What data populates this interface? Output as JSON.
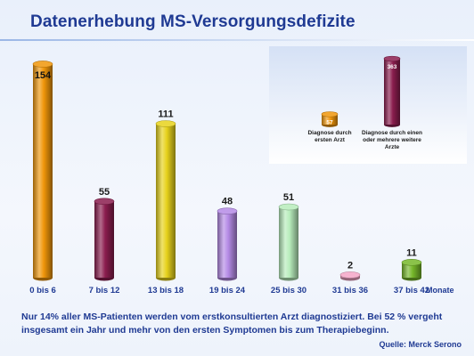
{
  "title": "Datenerhebung MS-Versorgungsdefizite",
  "caption": "Nur 14% aller MS-Patienten werden vom erstkonsultierten Arzt diagnostiziert. Bei 52 % vergeht insgesamt ein Jahr und mehr von den ersten Symptomen bis zum Therapiebeginn.",
  "source": "Quelle: Merck Serono",
  "colors": {
    "title": "#1f3a93",
    "bars": [
      "#f0960a",
      "#8a1d4e",
      "#e7d21c",
      "#b58be6",
      "#b7ecbb",
      "#f4a6c8",
      "#76b82a"
    ]
  },
  "chart_data": [
    {
      "type": "bar",
      "categories": [
        "0 bis 6",
        "7 bis 12",
        "13 bis 18",
        "19 bis 24",
        "25 bis 30",
        "31 bis 36",
        "37 bis 42"
      ],
      "values": [
        154,
        55,
        111,
        48,
        51,
        2,
        11
      ],
      "xlabel": "Monate",
      "ylabel": "",
      "ylim": [
        0,
        160
      ],
      "grid": false
    },
    {
      "type": "bar",
      "categories": [
        "Diagnose durch ersten Arzt",
        "Diagnose durch einen oder mehrere weitere Arzte"
      ],
      "values": [
        57,
        363
      ],
      "ylim": [
        0,
        380
      ]
    }
  ]
}
